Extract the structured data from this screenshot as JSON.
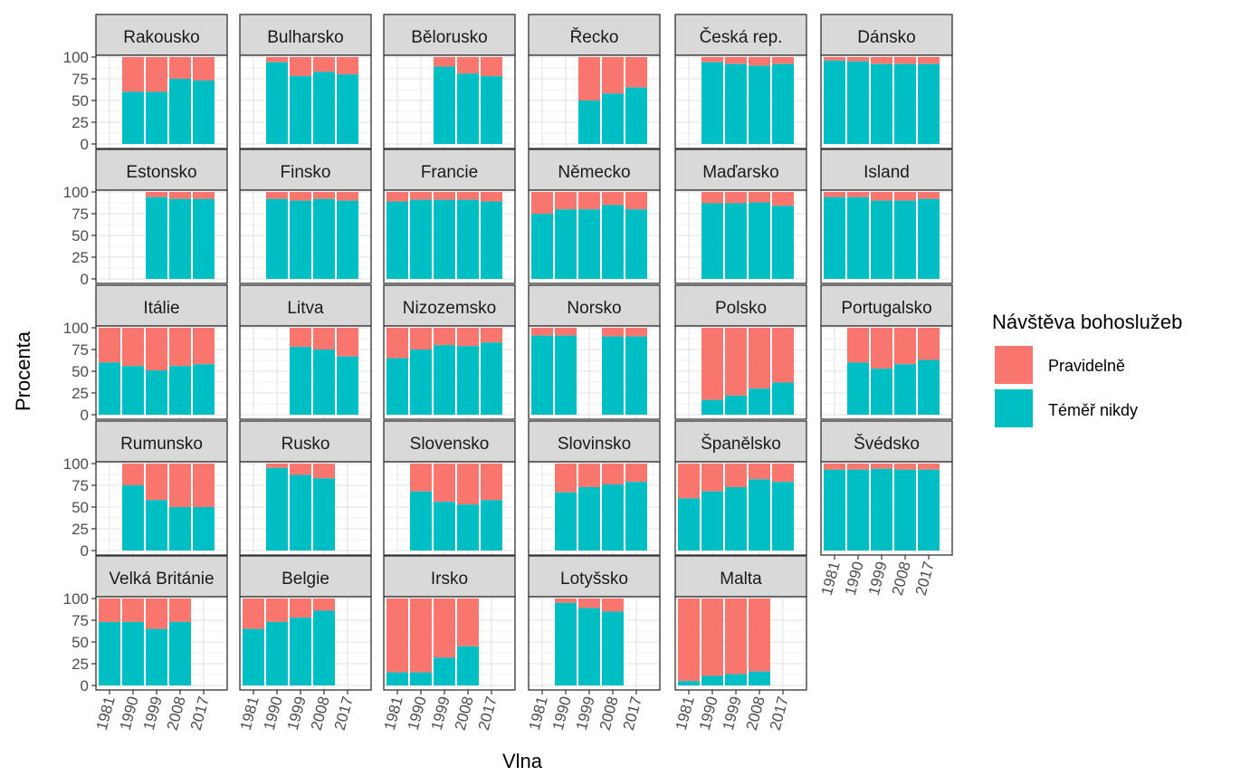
{
  "chart_data": {
    "type": "bar",
    "stacked": true,
    "facet_layout": "wrap 6 columns",
    "xlabel": "Vlna",
    "ylabel": "Procenta",
    "x": [
      "1981",
      "1990",
      "1999",
      "2008",
      "2017"
    ],
    "y_ticks": [
      "0",
      "25",
      "50",
      "75",
      "100"
    ],
    "ylim": [
      0,
      100
    ],
    "grid": true,
    "legend": {
      "title": "Návštěva bohoslužeb",
      "placement": "right",
      "items": [
        {
          "name": "Pravidelně",
          "color": "#F8766D"
        },
        {
          "name": "Téměř nikdy",
          "color": "#00BFC4"
        }
      ]
    },
    "colors": {
      "regular": "#F8766D",
      "never": "#00BFC4",
      "strip": "#d9d9d9",
      "grid": "#ebebeb"
    },
    "note": "",
    "facets": [
      {
        "name": "Rakousko",
        "never": [
          null,
          60,
          60,
          75,
          73
        ]
      },
      {
        "name": "Bulharsko",
        "never": [
          null,
          94,
          78,
          83,
          80
        ]
      },
      {
        "name": "Bělorusko",
        "never": [
          null,
          null,
          89,
          81,
          78
        ]
      },
      {
        "name": "Řecko",
        "never": [
          null,
          null,
          50,
          58,
          65
        ]
      },
      {
        "name": "Česká rep.",
        "never": [
          null,
          94,
          92,
          90,
          92
        ]
      },
      {
        "name": "Dánsko",
        "never": [
          96,
          95,
          92,
          92,
          92
        ]
      },
      {
        "name": "Estonsko",
        "never": [
          null,
          null,
          94,
          92,
          92
        ]
      },
      {
        "name": "Finsko",
        "never": [
          null,
          92,
          90,
          92,
          90
        ]
      },
      {
        "name": "Francie",
        "never": [
          89,
          91,
          91,
          91,
          89
        ]
      },
      {
        "name": "Německo",
        "never": [
          75,
          80,
          80,
          85,
          80
        ]
      },
      {
        "name": "Maďarsko",
        "never": [
          null,
          87,
          87,
          88,
          84
        ]
      },
      {
        "name": "Island",
        "never": [
          94,
          94,
          90,
          90,
          92
        ]
      },
      {
        "name": "Itálie",
        "never": [
          60,
          56,
          51,
          56,
          58
        ]
      },
      {
        "name": "Litva",
        "never": [
          null,
          null,
          78,
          75,
          67
        ]
      },
      {
        "name": "Nizozemsko",
        "never": [
          65,
          75,
          80,
          79,
          83
        ]
      },
      {
        "name": "Norsko",
        "never": [
          91,
          91,
          null,
          90,
          90
        ]
      },
      {
        "name": "Polsko",
        "never": [
          null,
          17,
          22,
          30,
          37
        ]
      },
      {
        "name": "Portugalsko",
        "never": [
          null,
          60,
          53,
          58,
          63
        ]
      },
      {
        "name": "Rumunsko",
        "never": [
          null,
          75,
          58,
          50,
          50
        ]
      },
      {
        "name": "Rusko",
        "never": [
          null,
          95,
          87,
          83,
          null
        ]
      },
      {
        "name": "Slovensko",
        "never": [
          null,
          68,
          56,
          53,
          58
        ]
      },
      {
        "name": "Slovinsko",
        "never": [
          null,
          67,
          73,
          76,
          79
        ]
      },
      {
        "name": "Španělsko",
        "never": [
          60,
          68,
          73,
          82,
          79
        ]
      },
      {
        "name": "Švédsko",
        "never": [
          93,
          93,
          94,
          93,
          93
        ]
      },
      {
        "name": "Velká Británie",
        "never": [
          73,
          73,
          65,
          73,
          null
        ]
      },
      {
        "name": "Belgie",
        "never": [
          65,
          73,
          78,
          86,
          null
        ]
      },
      {
        "name": "Irsko",
        "never": [
          15,
          15,
          32,
          45,
          null
        ]
      },
      {
        "name": "Lotyšsko",
        "never": [
          null,
          95,
          89,
          85,
          null
        ]
      },
      {
        "name": "Malta",
        "never": [
          5,
          11,
          13,
          16,
          null
        ]
      }
    ]
  }
}
